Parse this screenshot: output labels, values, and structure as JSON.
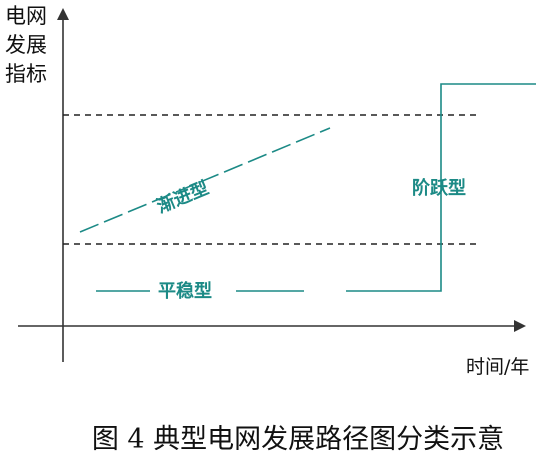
{
  "diagram": {
    "y_axis_label": [
      "电网",
      "发展",
      "指标"
    ],
    "x_axis_label": "时间/年",
    "series_labels": {
      "gradual": "渐进型",
      "stable": "平稳型",
      "step": "阶跃型"
    },
    "caption": "图 4 典型电网发展路径图分类示意",
    "colors": {
      "axis": "#333333",
      "dashed": "#222222",
      "path": "#1c8a86",
      "text": "#111111"
    }
  }
}
